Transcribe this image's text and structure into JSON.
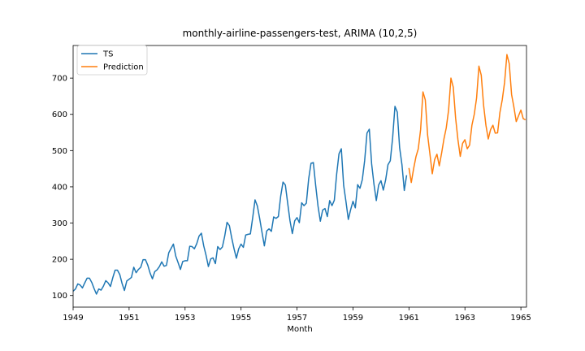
{
  "chart_data": {
    "type": "line",
    "title": "monthly-airline-passengers-test, ARIMA (10,2,5)",
    "xlabel": "Month",
    "ylabel": "",
    "xlim": [
      1949,
      1965.2
    ],
    "ylim": [
      68,
      790
    ],
    "x_ticks": [
      1949,
      1951,
      1953,
      1955,
      1957,
      1959,
      1961,
      1963,
      1965
    ],
    "y_ticks": [
      100,
      200,
      300,
      400,
      500,
      600,
      700
    ],
    "grid": false,
    "legend_position": "top-left",
    "series": [
      {
        "name": "TS",
        "color": "#1f77b4",
        "x_start": 1949,
        "step": 0.08333333,
        "values": [
          112,
          118,
          132,
          129,
          121,
          135,
          148,
          148,
          136,
          119,
          104,
          118,
          115,
          126,
          141,
          135,
          125,
          149,
          170,
          170,
          158,
          133,
          114,
          140,
          145,
          150,
          178,
          163,
          172,
          178,
          199,
          199,
          184,
          162,
          146,
          166,
          171,
          180,
          193,
          181,
          183,
          218,
          230,
          242,
          209,
          191,
          172,
          194,
          196,
          196,
          236,
          235,
          229,
          243,
          264,
          272,
          237,
          211,
          180,
          201,
          204,
          188,
          235,
          227,
          234,
          264,
          302,
          293,
          259,
          229,
          203,
          229,
          242,
          233,
          267,
          269,
          270,
          315,
          364,
          347,
          312,
          274,
          237,
          278,
          284,
          277,
          317,
          313,
          318,
          374,
          413,
          405,
          355,
          306,
          271,
          306,
          315,
          301,
          356,
          348,
          355,
          422,
          465,
          467,
          404,
          347,
          305,
          336,
          340,
          318,
          362,
          348,
          363,
          435,
          491,
          505,
          404,
          359,
          310,
          337,
          360,
          342,
          406,
          396,
          420,
          472,
          548,
          559,
          463,
          407,
          362,
          405,
          417,
          391,
          419,
          461,
          472,
          535,
          622,
          606,
          508,
          461,
          390,
          432
        ]
      },
      {
        "name": "Prediction",
        "color": "#ff7f0e",
        "x_start": 1961,
        "step": 0.08333333,
        "values": [
          452,
          412,
          450,
          483,
          505,
          558,
          662,
          640,
          543,
          490,
          436,
          475,
          490,
          458,
          493,
          532,
          563,
          612,
          700,
          675,
          590,
          530,
          484,
          520,
          530,
          505,
          515,
          570,
          600,
          645,
          733,
          708,
          625,
          570,
          532,
          558,
          570,
          548,
          549,
          605,
          640,
          688,
          765,
          740,
          655,
          620,
          580,
          596,
          612,
          588,
          585
        ]
      }
    ]
  }
}
